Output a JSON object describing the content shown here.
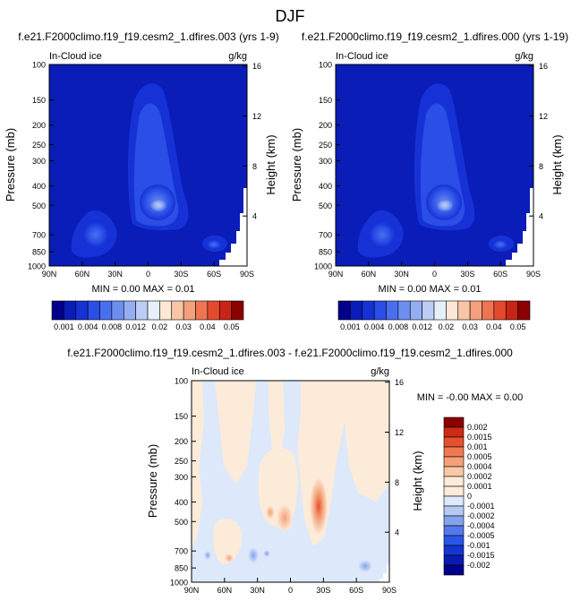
{
  "title": "DJF",
  "colors": {
    "abs_scale": [
      "#00008b",
      "#0a1db8",
      "#1632d6",
      "#2a4ee6",
      "#4a6fee",
      "#6c8ef0",
      "#94aef2",
      "#bccdf5",
      "#e6effa",
      "#fde7d6",
      "#f8c6a6",
      "#f4a07c",
      "#ef7452",
      "#e34a2c",
      "#c92516",
      "#8b0000"
    ],
    "diff_scale": [
      "#00008b",
      "#0a1ab0",
      "#1535d0",
      "#2a55e8",
      "#5579ec",
      "#86a2ef",
      "#b6c9f3",
      "#dde9fa",
      "#fdebd9",
      "#f9c8a4",
      "#f4a178",
      "#ef7a52",
      "#e5512f",
      "#cd2b15",
      "#8b0000"
    ]
  },
  "panels": {
    "left": {
      "title": "f.e21.F2000climo.f19_f19.cesm2_1.dfires.003 (yrs 1-9)",
      "field": "In-Cloud ice",
      "units": "g/kg",
      "minmax": "MIN =  0.00  MAX =  0.01"
    },
    "right": {
      "title": "f.e21.F2000climo.f19_f19.cesm2_1.dfires.000 (yrs 1-19)",
      "field": "In-Cloud ice",
      "units": "g/kg",
      "minmax": "MIN =  0.00  MAX =  0.01"
    },
    "diff": {
      "title": "f.e21.F2000climo.f19_f19.cesm2_1.dfires.003 - f.e21.F2000climo.f19_f19.cesm2_1.dfires.000",
      "field": "In-Cloud ice",
      "units": "g/kg",
      "minmax": "MIN = -0.00  MAX =  0.00"
    }
  },
  "axes": {
    "ylabel": "Pressure (mb)",
    "y2label": "Height (km)",
    "pressure_ticks": [
      "100",
      "150",
      "200",
      "250",
      "300",
      "400",
      "500",
      "700",
      "850",
      "1000"
    ],
    "pressure_values": [
      100,
      150,
      200,
      250,
      300,
      400,
      500,
      700,
      850,
      1000
    ],
    "height_ticks": [
      "16",
      "12",
      "8",
      "4"
    ],
    "height_values": [
      16,
      12,
      8,
      4
    ],
    "lat_ticks": [
      "90N",
      "60N",
      "30N",
      "0",
      "30S",
      "60S",
      "90S"
    ]
  },
  "chart_data": [
    {
      "type": "heatmap",
      "title": "f.e21.F2000climo.f19_f19.cesm2_1.dfires.003 (yrs 1-9)",
      "subtitle": "In-Cloud ice",
      "units": "g/kg",
      "xlabel": "",
      "ylabel": "Pressure (mb)",
      "y2label": "Height (km)",
      "xlim": [
        90,
        -90
      ],
      "ylim": [
        1000,
        100
      ],
      "yscale": "log",
      "levels": [
        0.001,
        0.002,
        0.003,
        0.004,
        0.006,
        0.008,
        0.01,
        0.012,
        0.015,
        0.02,
        0.025,
        0.03,
        0.035,
        0.04,
        0.045,
        0.05
      ],
      "colorbar_labels": [
        "0.001",
        "0.004",
        "0.008",
        "0.012",
        "0.02",
        "0.03",
        "0.04",
        "0.05"
      ],
      "min": 0.0,
      "max": 0.01,
      "features": [
        {
          "lat": 5,
          "p": 500,
          "value": 0.01
        },
        {
          "lat": 10,
          "p": 300,
          "value": 0.006
        },
        {
          "lat": 12,
          "p": 150,
          "value": 0.003
        },
        {
          "lat": 40,
          "p": 760,
          "value": 0.004
        },
        {
          "lat": -60,
          "p": 820,
          "value": 0.004
        }
      ]
    },
    {
      "type": "heatmap",
      "title": "f.e21.F2000climo.f19_f19.cesm2_1.dfires.000 (yrs 1-19)",
      "subtitle": "In-Cloud ice",
      "units": "g/kg",
      "xlabel": "",
      "ylabel": "Pressure (mb)",
      "y2label": "Height (km)",
      "xlim": [
        90,
        -90
      ],
      "ylim": [
        1000,
        100
      ],
      "yscale": "log",
      "levels": [
        0.001,
        0.002,
        0.003,
        0.004,
        0.006,
        0.008,
        0.01,
        0.012,
        0.015,
        0.02,
        0.025,
        0.03,
        0.035,
        0.04,
        0.045,
        0.05
      ],
      "colorbar_labels": [
        "0.001",
        "0.004",
        "0.008",
        "0.012",
        "0.02",
        "0.03",
        "0.04",
        "0.05"
      ],
      "min": 0.0,
      "max": 0.01,
      "features": [
        {
          "lat": 5,
          "p": 500,
          "value": 0.01
        },
        {
          "lat": 10,
          "p": 300,
          "value": 0.006
        },
        {
          "lat": 12,
          "p": 150,
          "value": 0.003
        },
        {
          "lat": 40,
          "p": 760,
          "value": 0.004
        },
        {
          "lat": -60,
          "p": 820,
          "value": 0.004
        }
      ]
    },
    {
      "type": "heatmap",
      "title": "f.e21.F2000climo.f19_f19.cesm2_1.dfires.003 - f.e21.F2000climo.f19_f19.cesm2_1.dfires.000",
      "subtitle": "In-Cloud ice",
      "units": "g/kg",
      "xlabel": "",
      "ylabel": "Pressure (mb)",
      "y2label": "Height (km)",
      "xlim": [
        90,
        -90
      ],
      "ylim": [
        1000,
        100
      ],
      "yscale": "log",
      "levels": [
        -0.002,
        -0.0015,
        -0.001,
        -0.0005,
        -0.0004,
        -0.0002,
        -0.0001,
        0,
        0.0001,
        0.0002,
        0.0004,
        0.0005,
        0.001,
        0.0015,
        0.002
      ],
      "colorbar_labels": [
        "0.002",
        "0.0015",
        "0.001",
        "0.0005",
        "0.0004",
        "0.0002",
        "0.0001",
        "0",
        "-0.0001",
        "-0.0002",
        "-0.0004",
        "-0.0005",
        "-0.001",
        "-0.0015",
        "-0.002"
      ],
      "min": -0.0,
      "max": 0.0,
      "features": [
        {
          "lat": -28,
          "p": 500,
          "value": 0.0005
        },
        {
          "lat": -25,
          "p": 420,
          "value": 0.0004
        },
        {
          "lat": 5,
          "p": 520,
          "value": 0.0002
        },
        {
          "lat": -2,
          "p": 480,
          "value": 0.0002
        },
        {
          "lat": 30,
          "p": 820,
          "value": -0.0002
        },
        {
          "lat": -55,
          "p": 880,
          "value": -0.0004
        }
      ]
    }
  ]
}
